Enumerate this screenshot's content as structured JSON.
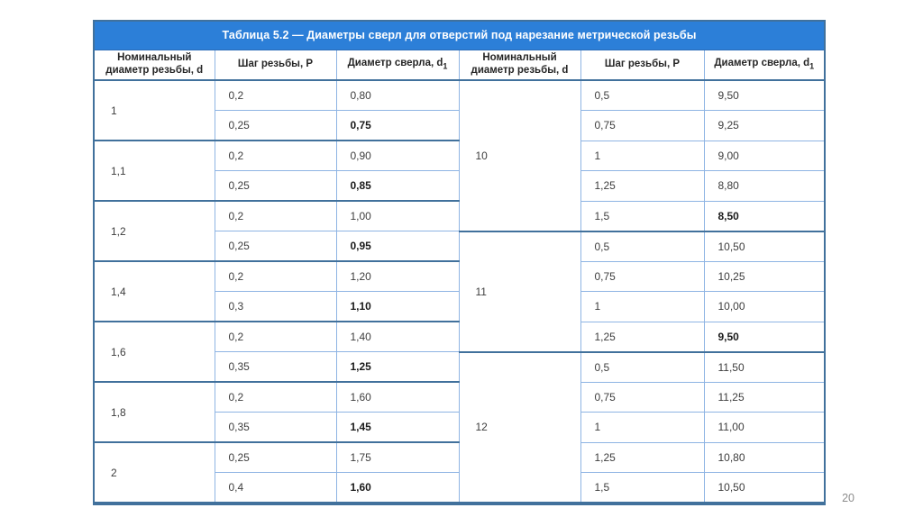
{
  "page": {
    "number": "20"
  },
  "colors": {
    "title_bar": "#2c7fd8",
    "border_dark": "#41719c",
    "border_light": "#8eb4e3",
    "title_text": "#ffffff"
  },
  "table": {
    "title": "Таблица 5.2 — Диаметры сверл для отверстий под нарезание метрической резьбы",
    "headers": {
      "nominal": "Номинальный диаметр резьбы, d",
      "pitch": "Шаг резьбы, P",
      "drill": "Диаметр сверла, d",
      "drill_sub": "1"
    },
    "left_groups": [
      {
        "d": "1",
        "rows": [
          {
            "p": "0,2",
            "d1": "0,80"
          },
          {
            "p": "0,25",
            "d1": "0,75",
            "bold": true
          }
        ]
      },
      {
        "d": "1,1",
        "rows": [
          {
            "p": "0,2",
            "d1": "0,90"
          },
          {
            "p": "0,25",
            "d1": "0,85",
            "bold": true
          }
        ]
      },
      {
        "d": "1,2",
        "rows": [
          {
            "p": "0,2",
            "d1": "1,00"
          },
          {
            "p": "0,25",
            "d1": "0,95",
            "bold": true
          }
        ]
      },
      {
        "d": "1,4",
        "rows": [
          {
            "p": "0,2",
            "d1": "1,20"
          },
          {
            "p": "0,3",
            "d1": "1,10",
            "bold": true
          }
        ]
      },
      {
        "d": "1,6",
        "rows": [
          {
            "p": "0,2",
            "d1": "1,40"
          },
          {
            "p": "0,35",
            "d1": "1,25",
            "bold": true
          }
        ]
      },
      {
        "d": "1,8",
        "rows": [
          {
            "p": "0,2",
            "d1": "1,60"
          },
          {
            "p": "0,35",
            "d1": "1,45",
            "bold": true
          }
        ]
      },
      {
        "d": "2",
        "rows": [
          {
            "p": "0,25",
            "d1": "1,75"
          },
          {
            "p": "0,4",
            "d1": "1,60",
            "bold": true
          }
        ]
      }
    ],
    "right_groups": [
      {
        "d": "10",
        "rows": [
          {
            "p": "0,5",
            "d1": "9,50"
          },
          {
            "p": "0,75",
            "d1": "9,25"
          },
          {
            "p": "1",
            "d1": "9,00"
          },
          {
            "p": "1,25",
            "d1": "8,80"
          },
          {
            "p": "1,5",
            "d1": "8,50",
            "bold": true
          }
        ]
      },
      {
        "d": "11",
        "rows": [
          {
            "p": "0,5",
            "d1": "10,50"
          },
          {
            "p": "0,75",
            "d1": "10,25"
          },
          {
            "p": "1",
            "d1": "10,00"
          },
          {
            "p": "1,25",
            "d1": "9,50",
            "bold": true
          }
        ]
      },
      {
        "d": "12",
        "rows": [
          {
            "p": "0,5",
            "d1": "11,50"
          },
          {
            "p": "0,75",
            "d1": "11,25"
          },
          {
            "p": "1",
            "d1": "11,00"
          },
          {
            "p": "1,25",
            "d1": "10,80"
          },
          {
            "p": "1,5",
            "d1": "10,50"
          }
        ]
      }
    ]
  }
}
